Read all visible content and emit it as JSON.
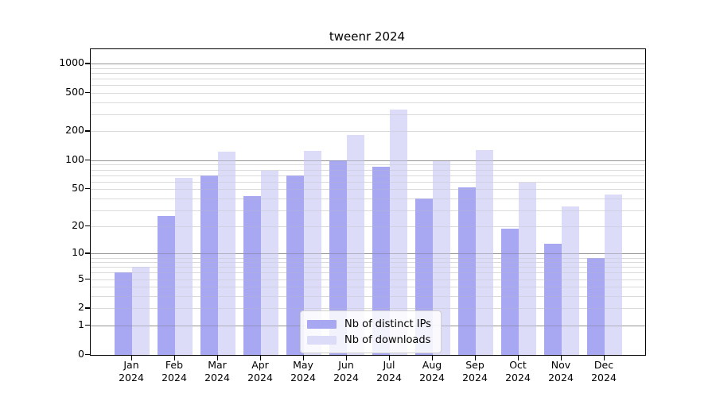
{
  "title": "tweenr 2024",
  "legend": {
    "items": [
      {
        "label": "Nb of distinct IPs",
        "color": "#a8a8f2"
      },
      {
        "label": "Nb of downloads",
        "color": "#dcdcf9"
      }
    ]
  },
  "chart_data": {
    "type": "bar",
    "title": "tweenr 2024",
    "categories": [
      "Jan 2024",
      "Feb 2024",
      "Mar 2024",
      "Apr 2024",
      "May 2024",
      "Jun 2024",
      "Jul 2024",
      "Aug 2024",
      "Sep 2024",
      "Oct 2024",
      "Nov 2024",
      "Dec 2024"
    ],
    "series": [
      {
        "name": "Nb of distinct IPs",
        "color": "#a8a8f2",
        "values": [
          6,
          26,
          69,
          42,
          70,
          100,
          86,
          40,
          52,
          19,
          13,
          9
        ]
      },
      {
        "name": "Nb of downloads",
        "color": "#dcdcf9",
        "values": [
          7,
          66,
          124,
          78,
          125,
          182,
          336,
          98,
          129,
          58,
          33,
          44
        ]
      }
    ],
    "xlabel": "",
    "ylabel": "",
    "yscale": "log1p",
    "y_ticks": [
      0,
      1,
      2,
      5,
      10,
      20,
      50,
      100,
      200,
      500,
      1000
    ],
    "y_major_gridlines": [
      1,
      10,
      100,
      1000
    ],
    "y_minor_gridlines": [
      2,
      3,
      4,
      5,
      6,
      7,
      8,
      9,
      20,
      30,
      40,
      50,
      60,
      70,
      80,
      90,
      200,
      300,
      400,
      500,
      600,
      700,
      800,
      900
    ],
    "ylim": [
      0,
      1368
    ],
    "grid": "on",
    "legend_position": "inside-bottom-center"
  },
  "colors": {
    "major_grid": "#b0b0b0",
    "minor_grid": "#e9e9e9",
    "axis": "#000000",
    "text": "#111111",
    "background": "#ffffff"
  }
}
